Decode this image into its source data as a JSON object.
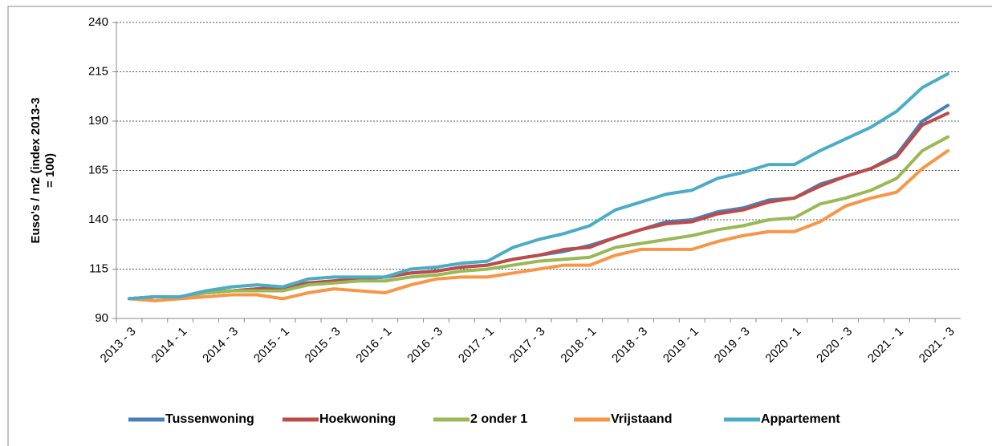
{
  "chart_data": {
    "type": "line",
    "y_label": [
      "Euso's / m2 (index 2013-3",
      "= 100)"
    ],
    "categories": [
      "2013 - 3",
      null,
      "2014 - 1",
      null,
      "2014 - 3",
      null,
      "2015 - 1",
      null,
      "2015 - 3",
      null,
      "2016 - 1",
      null,
      "2016 - 3",
      null,
      "2017 - 1",
      null,
      "2017 - 3",
      null,
      "2018 - 1",
      null,
      "2018 - 3",
      null,
      "2019 - 1",
      null,
      "2019 - 3",
      null,
      "2020 - 1",
      null,
      "2020 - 3",
      null,
      "2021 - 1",
      null,
      "2021 - 3"
    ],
    "series": [
      {
        "name": "Tussenwoning",
        "color": "#4a7ebb",
        "values": [
          100,
          101,
          101,
          103,
          104,
          105,
          106,
          108,
          109,
          110,
          111,
          113,
          114,
          116,
          117,
          120,
          122,
          124,
          127,
          131,
          135,
          139,
          140,
          144,
          146,
          150,
          151,
          158,
          162,
          166,
          173,
          190,
          198
        ]
      },
      {
        "name": "Hoekwoning",
        "color": "#be4b48",
        "values": [
          100,
          101,
          101,
          103,
          104,
          105,
          105,
          108,
          109,
          110,
          111,
          113,
          114,
          116,
          117,
          120,
          122,
          125,
          126,
          131,
          135,
          138,
          139,
          143,
          145,
          149,
          151,
          157,
          162,
          166,
          172,
          188,
          194
        ]
      },
      {
        "name": "2 onder 1",
        "color": "#98b954",
        "values": [
          100,
          101,
          101,
          103,
          104,
          104,
          104,
          107,
          108,
          109,
          109,
          111,
          112,
          114,
          115,
          117,
          119,
          120,
          121,
          126,
          128,
          130,
          132,
          135,
          137,
          140,
          141,
          148,
          151,
          155,
          161,
          175,
          182
        ]
      },
      {
        "name": "Vrijstaand",
        "color": "#f79646",
        "values": [
          100,
          99,
          100,
          101,
          102,
          102,
          100,
          103,
          105,
          104,
          103,
          107,
          110,
          111,
          111,
          113,
          115,
          117,
          117,
          122,
          125,
          125,
          125,
          129,
          132,
          134,
          134,
          139,
          147,
          151,
          154,
          166,
          175
        ]
      },
      {
        "name": "Appartement",
        "color": "#4bacc6",
        "values": [
          100,
          101,
          101,
          104,
          106,
          107,
          106,
          110,
          111,
          111,
          111,
          115,
          116,
          118,
          119,
          126,
          130,
          133,
          137,
          145,
          149,
          153,
          155,
          161,
          164,
          168,
          168,
          175,
          181,
          187,
          195,
          207,
          214
        ]
      }
    ],
    "ylim": [
      90,
      240
    ],
    "yticks": [
      90,
      115,
      140,
      165,
      190,
      215,
      240
    ],
    "grid": true,
    "legend": "bottom"
  }
}
